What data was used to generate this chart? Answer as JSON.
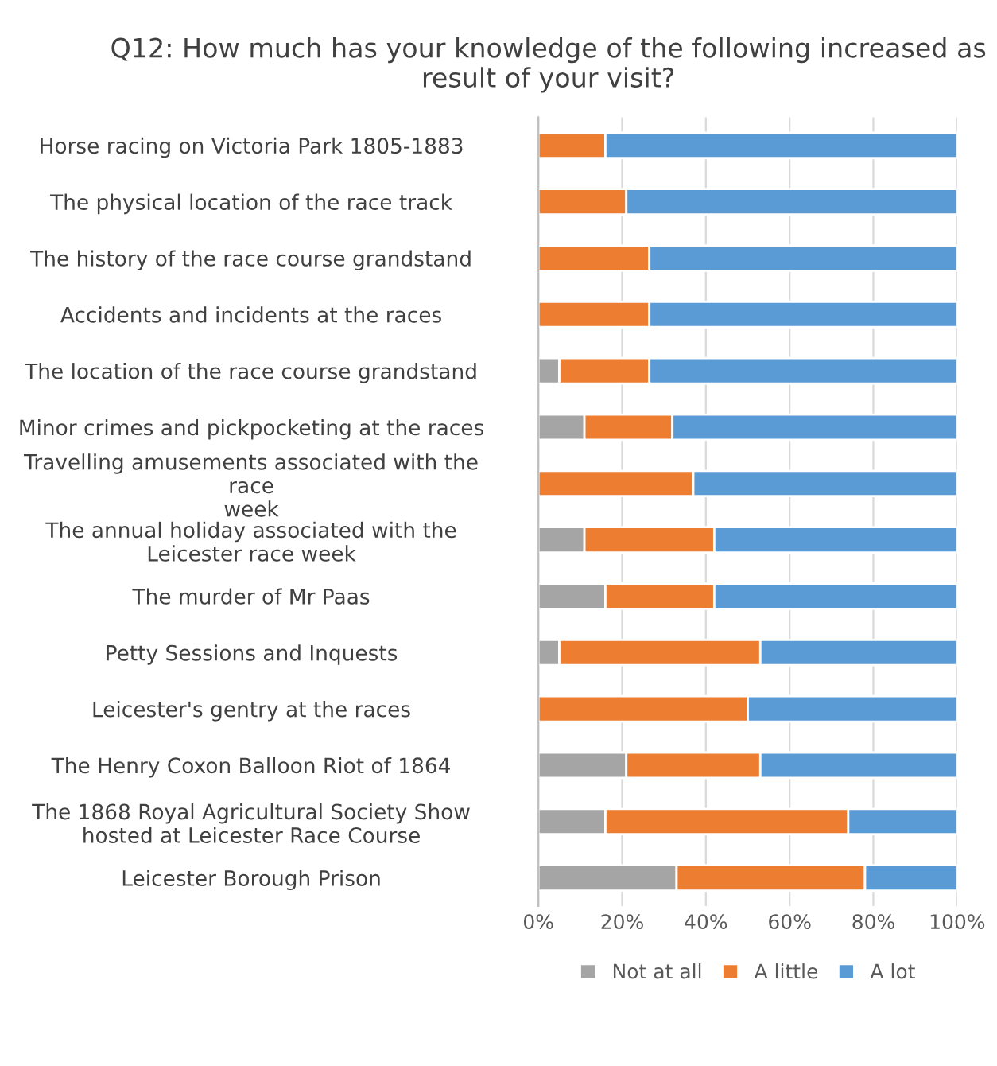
{
  "chart_data": {
    "type": "bar",
    "orientation": "horizontal",
    "stacked": true,
    "title": "Q12: How much has your knowledge of the following increased as result of your visit?",
    "categories": [
      "Horse racing on Victoria Park 1805-1883",
      "The physical location of the race track",
      "The history of the race course grandstand",
      "Accidents and incidents at the races",
      "The location of the race course grandstand",
      "Minor crimes and pickpocketing at the races",
      "Travelling amusements associated with the race week",
      "The annual holiday associated with the Leicester race week",
      "The murder of Mr Paas",
      "Petty Sessions and Inquests",
      "Leicester's gentry at the races",
      "The Henry Coxon Balloon Riot of 1864",
      "The 1868 Royal Agricultural Society Show hosted at Leicester Race Course",
      "Leicester Borough Prison"
    ],
    "series": [
      {
        "name": "Not at all",
        "color": "#a5a5a5",
        "values": [
          0,
          0,
          0,
          0,
          5,
          11,
          0,
          11,
          16,
          5,
          0,
          21,
          16,
          33
        ]
      },
      {
        "name": "A little",
        "color": "#ed7d31",
        "values": [
          16,
          21,
          26.5,
          26.5,
          21.5,
          21,
          37,
          31,
          26,
          48,
          50,
          32,
          58,
          45
        ]
      },
      {
        "name": "A lot",
        "color": "#5b9bd5",
        "values": [
          84,
          79,
          73.5,
          73.5,
          73.5,
          68,
          63,
          58,
          58,
          47,
          50,
          47,
          26,
          22
        ]
      }
    ],
    "xlim": [
      0,
      100
    ],
    "xticks": [
      {
        "value": 0,
        "label": "0%"
      },
      {
        "value": 20,
        "label": "20%"
      },
      {
        "value": 40,
        "label": "40%"
      },
      {
        "value": 60,
        "label": "60%"
      },
      {
        "value": 80,
        "label": "80%"
      },
      {
        "value": 100,
        "label": "100%"
      }
    ],
    "grid": "x",
    "legend": "bottom"
  }
}
